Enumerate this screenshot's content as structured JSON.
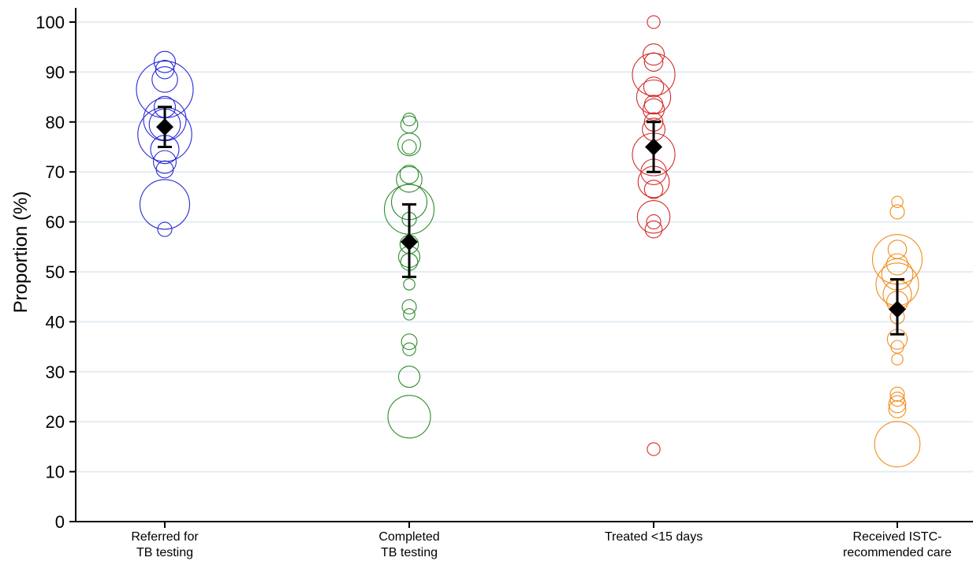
{
  "chart_data": {
    "type": "scatter",
    "ylabel": "Proportion (%)",
    "xlabel": "",
    "ylim": [
      0,
      100
    ],
    "yticks": [
      0,
      10,
      20,
      30,
      40,
      50,
      60,
      70,
      80,
      90,
      100
    ],
    "grid": true,
    "legend": "none",
    "categories": [
      {
        "lines": [
          "Referred for",
          "TB testing"
        ]
      },
      {
        "lines": [
          "Completed",
          "TB testing"
        ]
      },
      {
        "lines": [
          "Treated <15 days"
        ]
      },
      {
        "lines": [
          "Received ISTC-",
          "recommended care"
        ]
      }
    ],
    "series": [
      {
        "category_index": 0,
        "color": "#2a2ad6",
        "pooled": {
          "estimate": 79,
          "ci": [
            75,
            83
          ]
        },
        "studies": [
          {
            "value": 58.5,
            "size": 1.0
          },
          {
            "value": 63.5,
            "size": 3.5
          },
          {
            "value": 70.5,
            "size": 1.2
          },
          {
            "value": 72,
            "size": 1.6
          },
          {
            "value": 74.5,
            "size": 2.0
          },
          {
            "value": 77.5,
            "size": 3.8
          },
          {
            "value": 79.5,
            "size": 2.2
          },
          {
            "value": 80.5,
            "size": 3.0
          },
          {
            "value": 83,
            "size": 1.5
          },
          {
            "value": 86.5,
            "size": 4.0
          },
          {
            "value": 88.5,
            "size": 1.8
          },
          {
            "value": 90.5,
            "size": 1.3
          },
          {
            "value": 92,
            "size": 1.5
          }
        ]
      },
      {
        "category_index": 1,
        "color": "#2e8b2e",
        "pooled": {
          "estimate": 56,
          "ci": [
            49,
            63.5
          ]
        },
        "studies": [
          {
            "value": 21,
            "size": 3.0
          },
          {
            "value": 29,
            "size": 1.5
          },
          {
            "value": 34.5,
            "size": 0.9
          },
          {
            "value": 36,
            "size": 1.1
          },
          {
            "value": 41.5,
            "size": 0.8
          },
          {
            "value": 43,
            "size": 1.0
          },
          {
            "value": 47.5,
            "size": 0.8
          },
          {
            "value": 52,
            "size": 1.2
          },
          {
            "value": 53,
            "size": 1.5
          },
          {
            "value": 55.5,
            "size": 1.3
          },
          {
            "value": 60.5,
            "size": 1.0
          },
          {
            "value": 62.5,
            "size": 3.5
          },
          {
            "value": 64,
            "size": 2.5
          },
          {
            "value": 68.5,
            "size": 1.8
          },
          {
            "value": 69.5,
            "size": 1.3
          },
          {
            "value": 75,
            "size": 1.0
          },
          {
            "value": 75.5,
            "size": 1.6
          },
          {
            "value": 79.5,
            "size": 1.2
          },
          {
            "value": 80.5,
            "size": 0.9
          }
        ]
      },
      {
        "category_index": 2,
        "color": "#d42b2b",
        "pooled": {
          "estimate": 75,
          "ci": [
            70,
            80
          ]
        },
        "studies": [
          {
            "value": 14.5,
            "size": 0.9
          },
          {
            "value": 58.5,
            "size": 1.2
          },
          {
            "value": 60,
            "size": 1.0
          },
          {
            "value": 61,
            "size": 2.3
          },
          {
            "value": 66.5,
            "size": 1.3
          },
          {
            "value": 68,
            "size": 2.2
          },
          {
            "value": 70,
            "size": 1.8
          },
          {
            "value": 73.5,
            "size": 3.0
          },
          {
            "value": 78.5,
            "size": 1.6
          },
          {
            "value": 80,
            "size": 1.3
          },
          {
            "value": 82.5,
            "size": 1.5
          },
          {
            "value": 83.5,
            "size": 1.3
          },
          {
            "value": 85,
            "size": 2.4
          },
          {
            "value": 87,
            "size": 1.4
          },
          {
            "value": 89.5,
            "size": 3.0
          },
          {
            "value": 92,
            "size": 1.3
          },
          {
            "value": 93.5,
            "size": 1.5
          },
          {
            "value": 100,
            "size": 0.9
          }
        ]
      },
      {
        "category_index": 3,
        "color": "#f28c1c",
        "pooled": {
          "estimate": 42.5,
          "ci": [
            37.5,
            48.5
          ]
        },
        "studies": [
          {
            "value": 15.5,
            "size": 3.2
          },
          {
            "value": 22.5,
            "size": 1.2
          },
          {
            "value": 23.5,
            "size": 1.2
          },
          {
            "value": 24.5,
            "size": 1.0
          },
          {
            "value": 25.5,
            "size": 1.0
          },
          {
            "value": 32.5,
            "size": 0.8
          },
          {
            "value": 35,
            "size": 0.9
          },
          {
            "value": 36.5,
            "size": 1.4
          },
          {
            "value": 41,
            "size": 1.0
          },
          {
            "value": 44,
            "size": 1.5
          },
          {
            "value": 45.5,
            "size": 2.0
          },
          {
            "value": 47.5,
            "size": 3.0
          },
          {
            "value": 49.5,
            "size": 2.2
          },
          {
            "value": 51.5,
            "size": 1.5
          },
          {
            "value": 52.5,
            "size": 3.5
          },
          {
            "value": 54.5,
            "size": 1.3
          },
          {
            "value": 62,
            "size": 1.0
          },
          {
            "value": 64,
            "size": 0.8
          }
        ]
      }
    ]
  }
}
